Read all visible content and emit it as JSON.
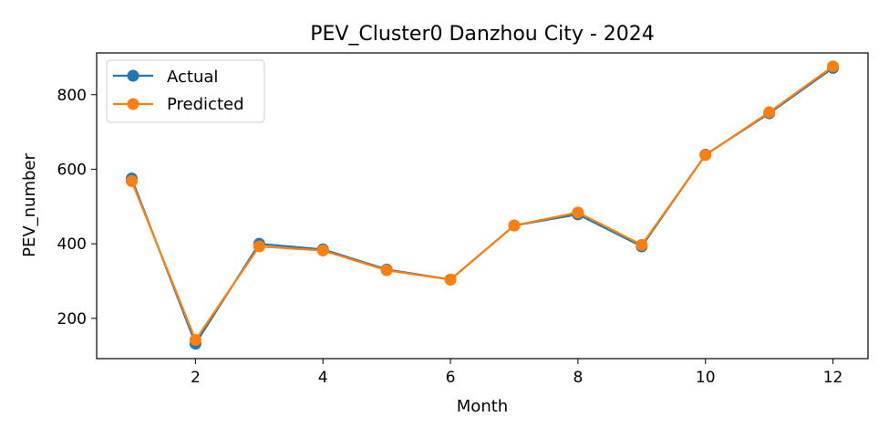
{
  "chart_data": {
    "type": "line",
    "title": "PEV_Cluster0 Danzhou City - 2024",
    "xlabel": "Month",
    "ylabel": "PEV_number",
    "xlim": [
      0.45,
      12.55
    ],
    "ylim": [
      92,
      912
    ],
    "xticks": [
      2,
      4,
      6,
      8,
      10,
      12
    ],
    "yticks": [
      200,
      400,
      600,
      800
    ],
    "grid": false,
    "legend_position": "top-left",
    "x": [
      1,
      2,
      3,
      4,
      5,
      6,
      7,
      8,
      9,
      10,
      11,
      12
    ],
    "series": [
      {
        "name": "Actual",
        "color": "#1f77b4",
        "values": [
          575,
          132,
          400,
          385,
          331,
          304,
          449,
          479,
          393,
          639,
          750,
          872
        ]
      },
      {
        "name": "Predicted",
        "color": "#ff7f0e",
        "values": [
          568,
          142,
          393,
          382,
          329,
          304,
          449,
          484,
          397,
          638,
          753,
          876
        ]
      }
    ]
  }
}
